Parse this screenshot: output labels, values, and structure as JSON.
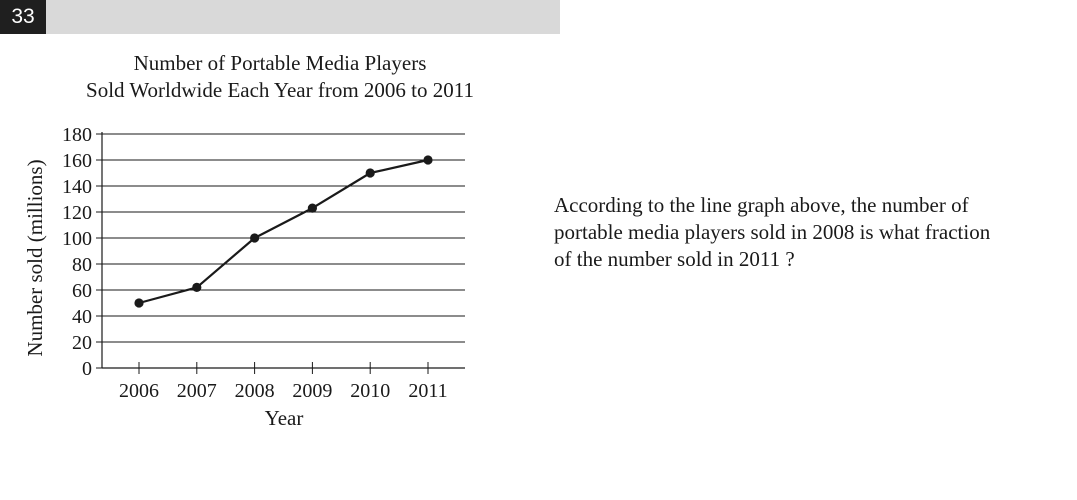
{
  "question": {
    "number": "33",
    "lines": [
      "According to the line graph above, the number of",
      "portable media players sold in 2008 is what fraction",
      "of the number sold in 2011 ?"
    ]
  },
  "chart_data": {
    "type": "line",
    "title_lines": [
      "Number of Portable Media Players",
      "Sold Worldwide Each Year from 2006 to 2011"
    ],
    "xlabel": "Year",
    "ylabel": "Number sold (millions)",
    "categories": [
      "2006",
      "2007",
      "2008",
      "2009",
      "2010",
      "2011"
    ],
    "series": [
      {
        "values": [
          50,
          62,
          100,
          123,
          150,
          160
        ]
      }
    ],
    "ylim": [
      0,
      180
    ],
    "yticks": [
      0,
      20,
      40,
      60,
      80,
      100,
      120,
      140,
      160,
      180
    ],
    "ytick_labels": [
      "0",
      "20",
      "40",
      "60",
      "80",
      "100",
      "120",
      "140",
      "160",
      "180"
    ],
    "grid": true,
    "line_color": "#1a1a1a"
  }
}
